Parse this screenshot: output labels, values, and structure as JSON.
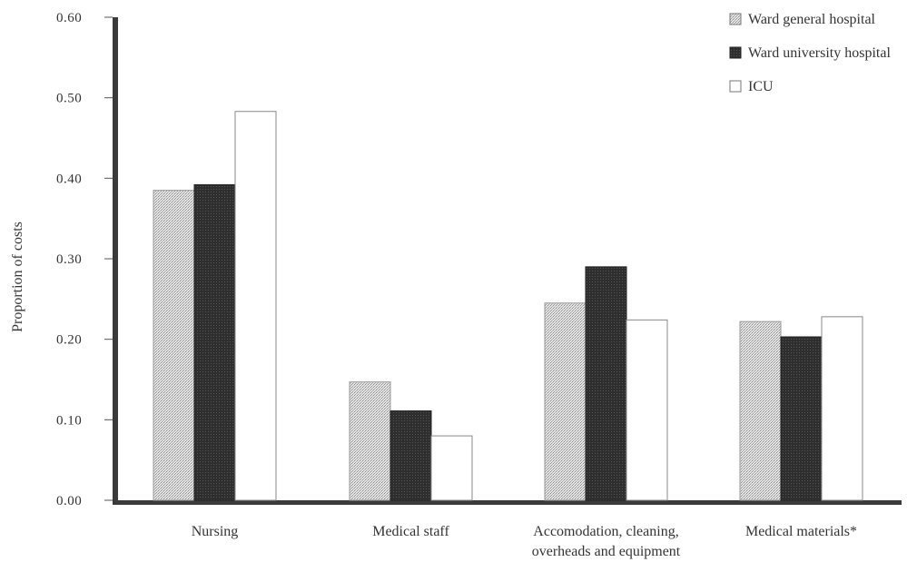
{
  "chart_data": {
    "type": "bar",
    "categories": [
      "Nursing",
      "Medical staff",
      "Accomodation, cleaning, overheads and equipment",
      "Medical materials*"
    ],
    "category_label_lines": [
      [
        "Nursing"
      ],
      [
        "Medical staff"
      ],
      [
        "Accomodation, cleaning,",
        "overheads and equipment"
      ],
      [
        "Medical materials*"
      ]
    ],
    "series": [
      {
        "name": "Ward general hospital",
        "values": [
          0.385,
          0.147,
          0.245,
          0.222
        ],
        "color": "#d6d6d6",
        "pattern": "dotted"
      },
      {
        "name": "Ward university hospital",
        "values": [
          0.392,
          0.111,
          0.29,
          0.203
        ],
        "color": "#2b2b2b",
        "pattern": "dark"
      },
      {
        "name": "ICU",
        "values": [
          0.483,
          0.08,
          0.224,
          0.228
        ],
        "color": "#ffffff",
        "pattern": "none"
      }
    ],
    "ylabel": "Proportion of costs",
    "xlabel": "",
    "ylim": [
      0,
      0.6
    ],
    "yticks": [
      "0.00",
      "0.10",
      "0.20",
      "0.30",
      "0.40",
      "0.50",
      "0.60"
    ],
    "grid": false,
    "legend_position": "top-right"
  }
}
